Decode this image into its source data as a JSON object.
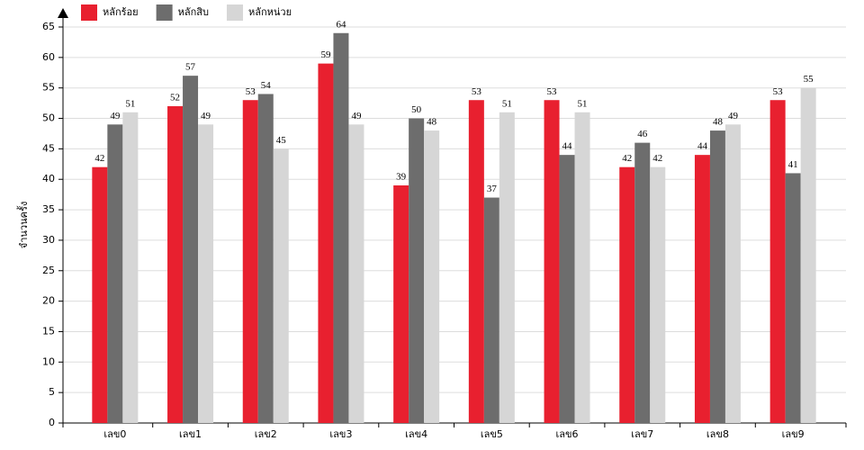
{
  "chart_data": {
    "type": "bar",
    "y_label": "จำนวนครั้ง",
    "categories": [
      "เลข0",
      "เลข1",
      "เลข2",
      "เลข3",
      "เลข4",
      "เลข5",
      "เลข6",
      "เลข7",
      "เลข8",
      "เลข9"
    ],
    "series": [
      {
        "name": "หลักร้อย",
        "color": "#e8202f",
        "values": [
          42,
          52,
          53,
          59,
          39,
          53,
          53,
          42,
          44,
          53
        ]
      },
      {
        "name": "หลักสิบ",
        "color": "#6d6d6d",
        "values": [
          49,
          57,
          54,
          64,
          50,
          37,
          44,
          46,
          48,
          41
        ]
      },
      {
        "name": "หลักหน่วย",
        "color": "#d6d6d6",
        "values": [
          51,
          49,
          45,
          49,
          48,
          51,
          51,
          42,
          49,
          55
        ]
      }
    ],
    "ylim": [
      0,
      65
    ],
    "yticks": [
      0,
      5,
      10,
      15,
      20,
      25,
      30,
      35,
      40,
      45,
      50,
      55,
      60,
      65
    ],
    "grid": true
  }
}
